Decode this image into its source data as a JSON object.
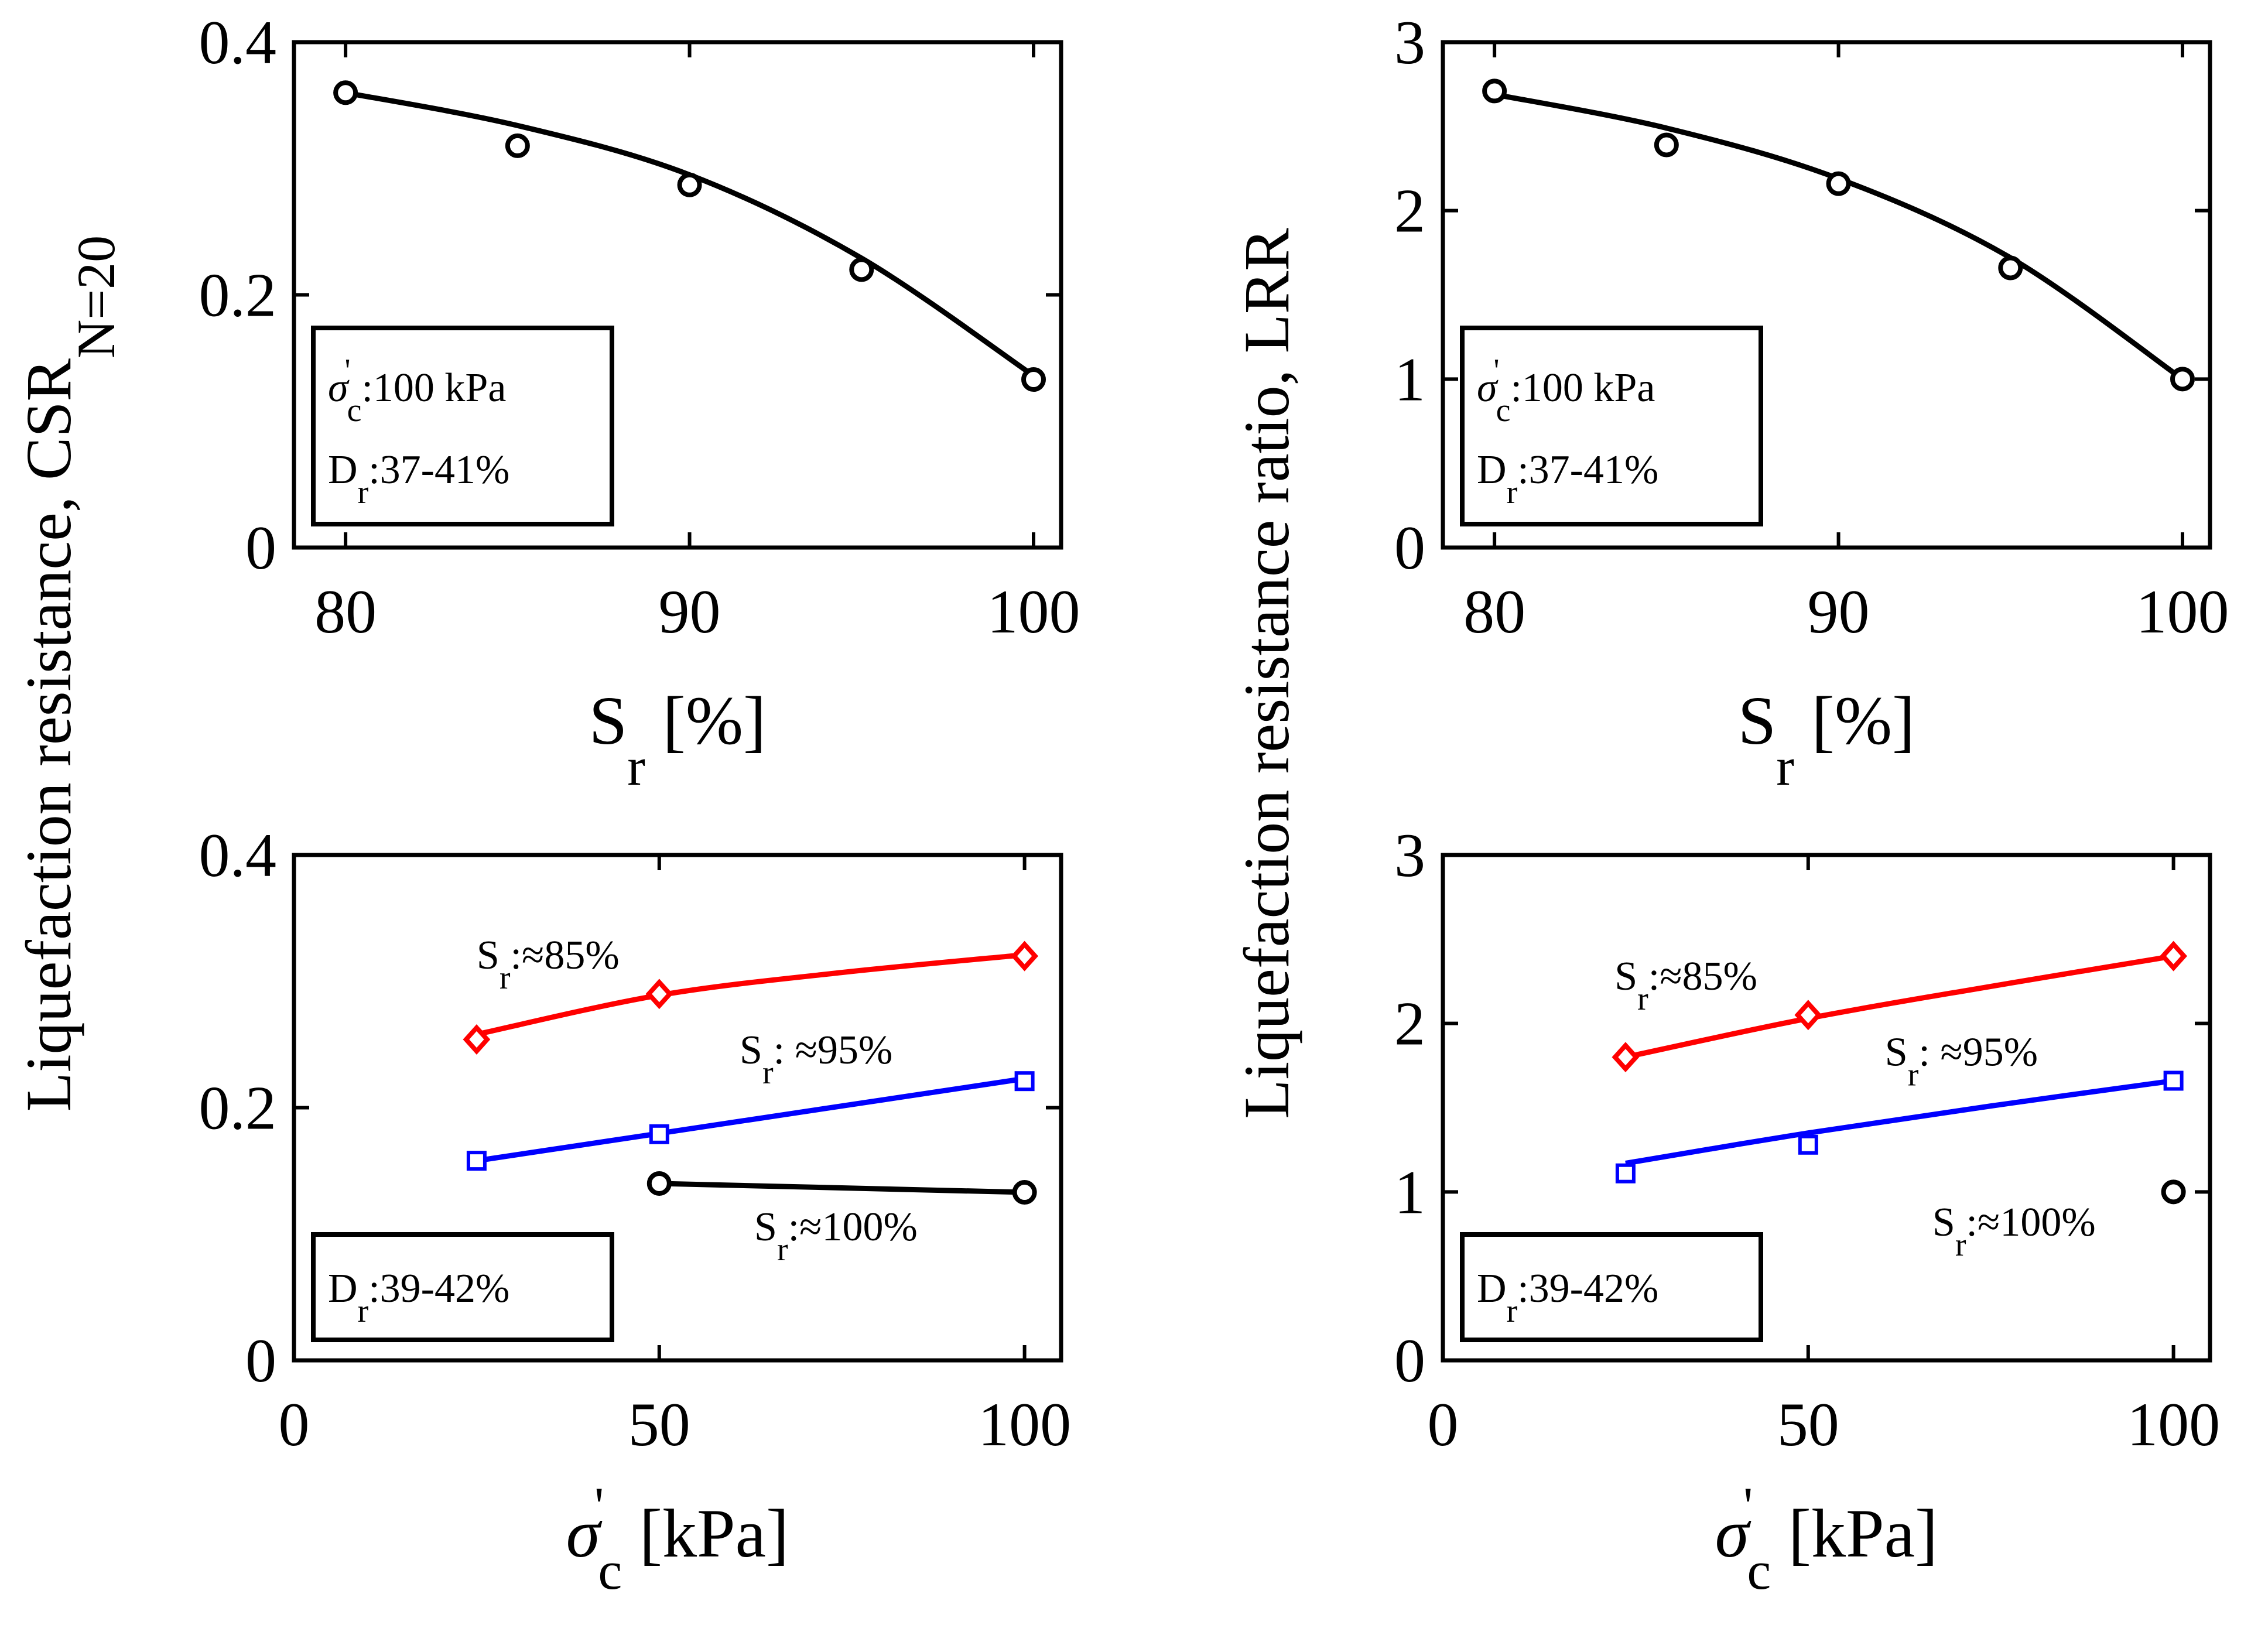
{
  "colors": {
    "black": "#000000",
    "red": "#ff0000",
    "blue": "#0000ff"
  },
  "chart_data": [
    {
      "id": "a",
      "type": "line",
      "xlim": [
        78.5,
        100.8
      ],
      "ylim": [
        0,
        0.4
      ],
      "xticks": [
        80,
        90,
        100
      ],
      "yticks": [
        0,
        0.2,
        0.4
      ],
      "xtick_labels": [
        "80",
        "90",
        "100"
      ],
      "ytick_labels": [
        "0",
        "0.2",
        "0.4"
      ],
      "xlabel": {
        "main": "S",
        "sub": "r",
        "rest": " [%]"
      },
      "ylabel": {
        "main": "Liquefaction resistance, CSR",
        "sub": "N=20"
      },
      "series": [
        {
          "name": "data",
          "color": "#000000",
          "marker": "circle",
          "x": [
            80,
            85,
            90,
            95,
            100
          ],
          "y": [
            0.36,
            0.318,
            0.287,
            0.22,
            0.133
          ]
        }
      ],
      "fits": [
        {
          "color": "#000000",
          "x": [
            80,
            85,
            90,
            95,
            100
          ],
          "y": [
            0.36,
            0.334,
            0.295,
            0.229,
            0.136
          ]
        }
      ],
      "legend_box": [
        {
          "main": "σ",
          "prime": "'",
          "sub": "c",
          "text": ":100 kPa"
        },
        {
          "main": "D",
          "sub": "r",
          "text": ":37-41%"
        }
      ],
      "labels": []
    },
    {
      "id": "b",
      "type": "line",
      "xlim": [
        78.5,
        100.8
      ],
      "ylim": [
        0,
        3
      ],
      "xticks": [
        80,
        90,
        100
      ],
      "yticks": [
        0,
        1,
        2,
        3
      ],
      "xtick_labels": [
        "80",
        "90",
        "100"
      ],
      "ytick_labels": [
        "0",
        "1",
        "2",
        "3"
      ],
      "xlabel": {
        "main": "S",
        "sub": "r",
        "rest": " [%]"
      },
      "ylabel": {
        "main": "Liquefaction resistance ratio, LRR",
        "sub": ""
      },
      "series": [
        {
          "name": "data",
          "color": "#000000",
          "marker": "circle",
          "x": [
            80,
            85,
            90,
            95,
            100
          ],
          "y": [
            2.71,
            2.39,
            2.16,
            1.66,
            1.0
          ]
        }
      ],
      "fits": [
        {
          "color": "#000000",
          "x": [
            80,
            85,
            90,
            95,
            100
          ],
          "y": [
            2.69,
            2.49,
            2.19,
            1.72,
            1.0
          ]
        }
      ],
      "legend_box": [
        {
          "main": "σ",
          "prime": "'",
          "sub": "c",
          "text": ":100 kPa"
        },
        {
          "main": "D",
          "sub": "r",
          "text": ":37-41%"
        }
      ],
      "labels": []
    },
    {
      "id": "c",
      "type": "line",
      "xlim": [
        0,
        105
      ],
      "ylim": [
        0,
        0.4
      ],
      "xticks": [
        0,
        50,
        100
      ],
      "yticks": [
        0,
        0.2,
        0.4
      ],
      "xtick_labels": [
        "0",
        "50",
        "100"
      ],
      "ytick_labels": [
        "0",
        "0.2",
        "0.4"
      ],
      "xlabel": {
        "main": "σ",
        "prime": "'",
        "sub": "c",
        "rest": " [kPa]"
      },
      "ylabel": null,
      "series": [
        {
          "name": "Sr≈85%",
          "color": "#ff0000",
          "marker": "diamond",
          "x": [
            25,
            50,
            100
          ],
          "y": [
            0.254,
            0.29,
            0.32
          ]
        },
        {
          "name": "Sr≈95%",
          "color": "#0000ff",
          "marker": "square",
          "x": [
            25,
            50,
            100
          ],
          "y": [
            0.158,
            0.179,
            0.221
          ]
        },
        {
          "name": "Sr≈100%",
          "color": "#000000",
          "marker": "circle",
          "x": [
            50,
            100
          ],
          "y": [
            0.14,
            0.133
          ]
        }
      ],
      "fits": [
        {
          "color": "#ff0000",
          "x": [
            25,
            50,
            75,
            100
          ],
          "y": [
            0.258,
            0.289,
            0.307,
            0.321
          ]
        },
        {
          "color": "#0000ff",
          "x": [
            25,
            100
          ],
          "y": [
            0.158,
            0.223
          ]
        },
        {
          "color": "#000000",
          "x": [
            50,
            100
          ],
          "y": [
            0.14,
            0.133
          ]
        }
      ],
      "legend_box": [
        {
          "main": "D",
          "sub": "r",
          "text": ":39-42%"
        }
      ],
      "labels": [
        {
          "main": "S",
          "sub": "r",
          "text": ":≈85%",
          "color": "#000000",
          "x": 25,
          "y": 0.31
        },
        {
          "main": "S",
          "sub": "r",
          "text": ": ≈95%",
          "color": "#000000",
          "x": 61,
          "y": 0.235
        },
        {
          "main": "S",
          "sub": "r",
          "text": ":≈100%",
          "color": "#000000",
          "x": 63,
          "y": 0.095
        }
      ]
    },
    {
      "id": "d",
      "type": "line",
      "xlim": [
        0,
        105
      ],
      "ylim": [
        0,
        3
      ],
      "xticks": [
        0,
        50,
        100
      ],
      "yticks": [
        0,
        1,
        2,
        3
      ],
      "xtick_labels": [
        "0",
        "50",
        "100"
      ],
      "ytick_labels": [
        "0",
        "1",
        "2",
        "3"
      ],
      "xlabel": {
        "main": "σ",
        "prime": "'",
        "sub": "c",
        "rest": " [kPa]"
      },
      "ylabel": null,
      "series": [
        {
          "name": "Sr≈85%",
          "color": "#ff0000",
          "marker": "diamond",
          "x": [
            25,
            50,
            100
          ],
          "y": [
            1.8,
            2.05,
            2.4
          ]
        },
        {
          "name": "Sr≈95%",
          "color": "#0000ff",
          "marker": "square",
          "x": [
            25,
            50,
            100
          ],
          "y": [
            1.11,
            1.28,
            1.66
          ]
        },
        {
          "name": "Sr≈100%",
          "color": "#000000",
          "marker": "circle",
          "x": [
            100
          ],
          "y": [
            1.0
          ]
        }
      ],
      "fits": [
        {
          "color": "#ff0000",
          "x": [
            25,
            50,
            75,
            100
          ],
          "y": [
            1.8,
            2.03,
            2.22,
            2.4
          ]
        },
        {
          "color": "#0000ff",
          "x": [
            25,
            50,
            75,
            100
          ],
          "y": [
            1.17,
            1.35,
            1.51,
            1.66
          ]
        }
      ],
      "legend_box": [
        {
          "main": "D",
          "sub": "r",
          "text": ":39-42%"
        }
      ],
      "labels": [
        {
          "main": "S",
          "sub": "r",
          "text": ":≈85%",
          "color": "#000000",
          "x": 23.5,
          "y": 2.2
        },
        {
          "main": "S",
          "sub": "r",
          "text": ": ≈95%",
          "color": "#000000",
          "x": 60.5,
          "y": 1.75
        },
        {
          "main": "S",
          "sub": "r",
          "text": ":≈100%",
          "color": "#000000",
          "x": 67,
          "y": 0.74
        }
      ]
    }
  ]
}
